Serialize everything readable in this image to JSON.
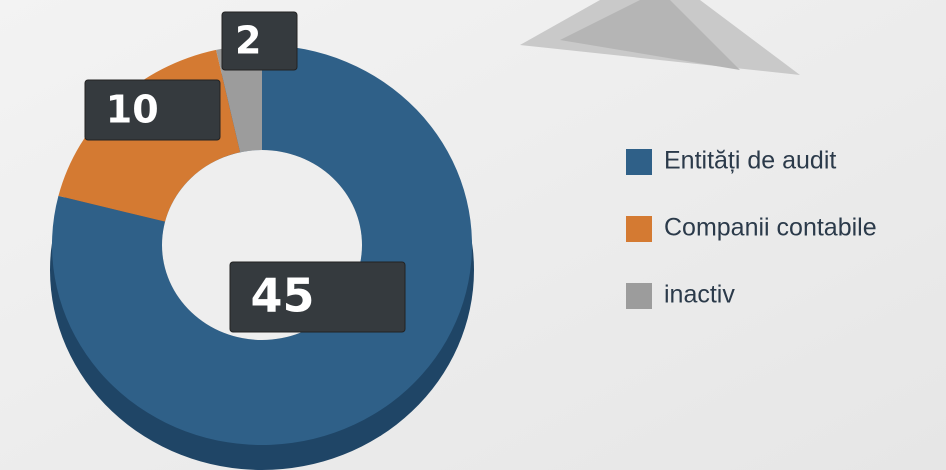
{
  "chart_data": {
    "type": "donut",
    "categories": [
      "Entități de audit",
      "Companii contabile",
      "inactiv"
    ],
    "values": [
      45,
      10,
      2
    ],
    "colors": [
      "#2f6088",
      "#d47a32",
      "#9c9c9c"
    ],
    "legend": "right"
  }
}
